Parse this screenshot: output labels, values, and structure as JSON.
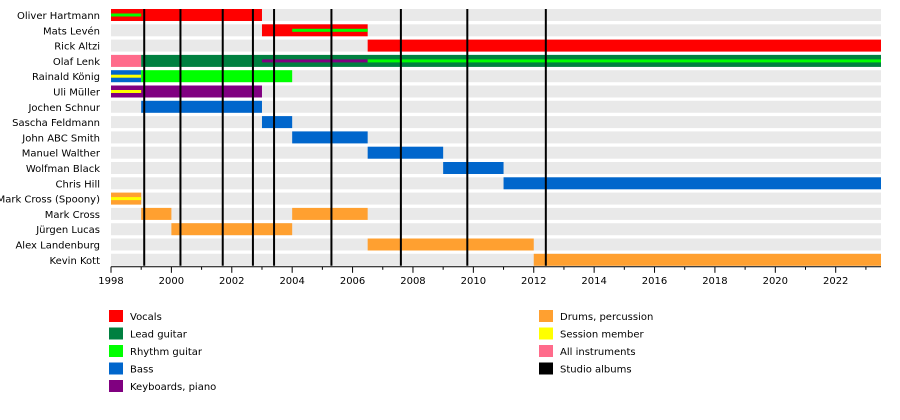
{
  "chart_data": {
    "type": "timeline",
    "title": "",
    "xlim": [
      1998,
      2023.5
    ],
    "x_ticks": [
      "1998",
      "2000",
      "2002",
      "2004",
      "2006",
      "2008",
      "2010",
      "2012",
      "2014",
      "2016",
      "2018",
      "2020",
      "2022"
    ],
    "members": [
      "Oliver Hartmann",
      "Mats Levén",
      "Rick Altzi",
      "Olaf Lenk",
      "Rainald König",
      "Uli Müller",
      "Jochen Schnur",
      "Sascha Feldmann",
      "John ABC Smith",
      "Manuel Walther",
      "Wolfman Black",
      "Chris Hill",
      "Mark Cross (Spoony)",
      "Mark Cross",
      "Jürgen Lucas",
      "Alex Landenburg",
      "Kevin Kott"
    ],
    "roles": [
      {
        "key": "vocals",
        "label": "Vocals",
        "color": "#ff0000"
      },
      {
        "key": "lead",
        "label": "Lead guitar",
        "color": "#008040"
      },
      {
        "key": "rhythm",
        "label": "Rhythm guitar",
        "color": "#00ff00"
      },
      {
        "key": "bass",
        "label": "Bass",
        "color": "#0066cc"
      },
      {
        "key": "keys",
        "label": "Keyboards, piano",
        "color": "#800080"
      },
      {
        "key": "drums",
        "label": "Drums, percussion",
        "color": "#ffa030"
      },
      {
        "key": "session",
        "label": "Session member",
        "color": "#ffff00"
      },
      {
        "key": "all",
        "label": "All instruments",
        "color": "#ff6b8b"
      },
      {
        "key": "albums",
        "label": "Studio albums",
        "color": "#000000"
      }
    ],
    "bars": [
      {
        "row": 0,
        "role": "vocals",
        "start": 1998,
        "end": 2003
      },
      {
        "row": 0,
        "role": "rhythm",
        "start": 1998,
        "end": 1999,
        "sub": true
      },
      {
        "row": 1,
        "role": "vocals",
        "start": 2003,
        "end": 2006.5
      },
      {
        "row": 1,
        "role": "rhythm",
        "start": 2004,
        "end": 2006.5,
        "sub": true
      },
      {
        "row": 2,
        "role": "vocals",
        "start": 2006.5,
        "end": 2023.5
      },
      {
        "row": 3,
        "role": "all",
        "start": 1998,
        "end": 1999
      },
      {
        "row": 3,
        "role": "lead",
        "start": 1999,
        "end": 2023.5
      },
      {
        "row": 3,
        "role": "keys",
        "start": 2003,
        "end": 2006.5,
        "sub": true
      },
      {
        "row": 3,
        "role": "rhythm",
        "start": 2006.5,
        "end": 2023.5,
        "sub": true
      },
      {
        "row": 4,
        "role": "bass",
        "start": 1998,
        "end": 1999
      },
      {
        "row": 4,
        "role": "session",
        "start": 1998,
        "end": 1999,
        "sub": true
      },
      {
        "row": 4,
        "role": "rhythm",
        "start": 1999,
        "end": 2004
      },
      {
        "row": 5,
        "role": "keys",
        "start": 1998,
        "end": 2003
      },
      {
        "row": 5,
        "role": "session",
        "start": 1998,
        "end": 1999,
        "sub": true
      },
      {
        "row": 6,
        "role": "bass",
        "start": 1999,
        "end": 2003
      },
      {
        "row": 7,
        "role": "bass",
        "start": 2003,
        "end": 2004
      },
      {
        "row": 8,
        "role": "bass",
        "start": 2004,
        "end": 2006.5
      },
      {
        "row": 9,
        "role": "bass",
        "start": 2006.5,
        "end": 2009
      },
      {
        "row": 10,
        "role": "bass",
        "start": 2009,
        "end": 2011
      },
      {
        "row": 11,
        "role": "bass",
        "start": 2011,
        "end": 2023.5
      },
      {
        "row": 12,
        "role": "drums",
        "start": 1998,
        "end": 1999
      },
      {
        "row": 12,
        "role": "session",
        "start": 1998,
        "end": 1999,
        "sub": true
      },
      {
        "row": 13,
        "role": "drums",
        "start": 1999,
        "end": 2000
      },
      {
        "row": 13,
        "role": "drums",
        "start": 2004,
        "end": 2006.5
      },
      {
        "row": 14,
        "role": "drums",
        "start": 2000,
        "end": 2004
      },
      {
        "row": 15,
        "role": "drums",
        "start": 2006.5,
        "end": 2012
      },
      {
        "row": 16,
        "role": "drums",
        "start": 2012,
        "end": 2023.5
      }
    ],
    "album_years": [
      1999.1,
      2000.3,
      2001.7,
      2002.7,
      2003.4,
      2005.3,
      2007.6,
      2009.8,
      2012.4
    ]
  }
}
